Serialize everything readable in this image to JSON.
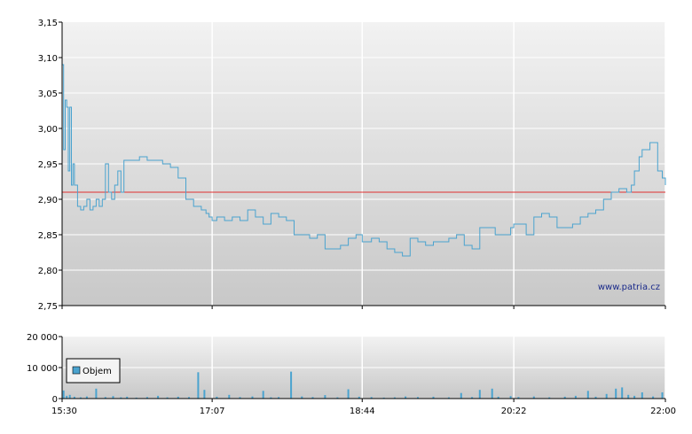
{
  "watermark": "www.patria.cz",
  "colors": {
    "price_line": "#4aa3cf",
    "reference_line": "#e03030",
    "volume_bar": "#4aa3cf",
    "grid": "#ffffff",
    "plot_bg_top": "#f2f2f2",
    "plot_bg_bottom": "#c8c8c8"
  },
  "chart_data": [
    {
      "type": "line",
      "name": "price",
      "grid": true,
      "ylim": [
        2.75,
        3.15
      ],
      "y_ticks": [
        "2,75",
        "2,80",
        "2,85",
        "2,90",
        "2,95",
        "3,00",
        "3,05",
        "3,10",
        "3,15"
      ],
      "x_range": [
        "15:30",
        "22:00"
      ],
      "reference_value": 2.91,
      "series": [
        {
          "x": [
            "15:30",
            "15:31",
            "15:32",
            "15:33",
            "15:34",
            "15:35",
            "15:36",
            "15:37",
            "15:38",
            "15:40",
            "15:42",
            "15:44",
            "15:46",
            "15:48",
            "15:50",
            "15:52",
            "15:54",
            "15:56",
            "15:58",
            "16:00",
            "16:02",
            "16:04",
            "16:06",
            "16:08",
            "16:10",
            "16:15",
            "16:20",
            "16:25",
            "16:30",
            "16:35",
            "16:40",
            "16:45",
            "16:50",
            "16:55",
            "17:00",
            "17:03",
            "17:05",
            "17:07",
            "17:10",
            "17:15",
            "17:20",
            "17:25",
            "17:30",
            "17:35",
            "17:40",
            "17:45",
            "17:50",
            "17:55",
            "18:00",
            "18:05",
            "18:10",
            "18:15",
            "18:20",
            "18:25",
            "18:30",
            "18:35",
            "18:40",
            "18:44",
            "18:50",
            "18:55",
            "19:00",
            "19:05",
            "19:10",
            "19:15",
            "19:20",
            "19:25",
            "19:30",
            "19:35",
            "19:40",
            "19:45",
            "19:50",
            "19:55",
            "20:00",
            "20:05",
            "20:10",
            "20:15",
            "20:20",
            "20:22",
            "20:25",
            "20:30",
            "20:35",
            "20:40",
            "20:45",
            "20:50",
            "20:55",
            "21:00",
            "21:05",
            "21:10",
            "21:15",
            "21:20",
            "21:25",
            "21:30",
            "21:35",
            "21:38",
            "21:40",
            "21:43",
            "21:45",
            "21:50",
            "21:55",
            "21:58",
            "22:00"
          ],
          "y": [
            3.09,
            2.97,
            3.04,
            3.03,
            2.94,
            3.03,
            2.92,
            2.95,
            2.92,
            2.89,
            2.885,
            2.89,
            2.9,
            2.885,
            2.89,
            2.9,
            2.89,
            2.9,
            2.95,
            2.91,
            2.9,
            2.92,
            2.94,
            2.91,
            2.955,
            2.955,
            2.96,
            2.955,
            2.955,
            2.95,
            2.945,
            2.93,
            2.9,
            2.89,
            2.885,
            2.88,
            2.875,
            2.87,
            2.875,
            2.87,
            2.875,
            2.87,
            2.885,
            2.875,
            2.865,
            2.88,
            2.875,
            2.87,
            2.85,
            2.85,
            2.845,
            2.85,
            2.83,
            2.83,
            2.835,
            2.845,
            2.85,
            2.84,
            2.845,
            2.84,
            2.83,
            2.825,
            2.82,
            2.845,
            2.84,
            2.835,
            2.84,
            2.84,
            2.845,
            2.85,
            2.835,
            2.83,
            2.86,
            2.86,
            2.85,
            2.85,
            2.86,
            2.865,
            2.865,
            2.85,
            2.875,
            2.88,
            2.875,
            2.86,
            2.86,
            2.865,
            2.875,
            2.88,
            2.885,
            2.9,
            2.91,
            2.915,
            2.91,
            2.92,
            2.94,
            2.96,
            2.97,
            2.98,
            2.94,
            2.93,
            2.92
          ]
        }
      ]
    },
    {
      "type": "bar",
      "name": "volume",
      "legend": "Objem",
      "legend_position": "top-left",
      "ylim": [
        0,
        20000
      ],
      "y_ticks": [
        "0",
        "10 000",
        "20 000"
      ],
      "x_ticks": [
        "15:30",
        "17:07",
        "18:44",
        "20:22",
        "22:00"
      ],
      "series": [
        {
          "x": [
            "15:31",
            "15:33",
            "15:35",
            "15:38",
            "15:42",
            "15:46",
            "15:52",
            "15:58",
            "16:03",
            "16:08",
            "16:12",
            "16:18",
            "16:25",
            "16:32",
            "16:38",
            "16:45",
            "16:52",
            "16:58",
            "17:02",
            "17:10",
            "17:18",
            "17:25",
            "17:33",
            "17:40",
            "17:45",
            "17:50",
            "17:58",
            "18:05",
            "18:12",
            "18:20",
            "18:28",
            "18:35",
            "18:42",
            "18:50",
            "18:58",
            "19:05",
            "19:12",
            "19:20",
            "19:30",
            "19:40",
            "19:48",
            "19:55",
            "20:00",
            "20:08",
            "20:12",
            "20:20",
            "20:25",
            "20:35",
            "20:45",
            "20:55",
            "21:02",
            "21:10",
            "21:15",
            "21:22",
            "21:28",
            "21:32",
            "21:36",
            "21:40",
            "21:45",
            "21:52",
            "21:58"
          ],
          "y": [
            2600,
            900,
            1200,
            600,
            400,
            700,
            3200,
            500,
            800,
            400,
            600,
            300,
            500,
            900,
            400,
            600,
            500,
            8500,
            2800,
            600,
            1200,
            500,
            700,
            2500,
            400,
            500,
            8700,
            700,
            500,
            1100,
            400,
            3000,
            600,
            500,
            300,
            400,
            700,
            500,
            600,
            400,
            1800,
            500,
            2800,
            3200,
            600,
            800,
            500,
            700,
            400,
            600,
            900,
            2500,
            600,
            1500,
            3200,
            3600,
            1200,
            900,
            2000,
            700,
            2000
          ]
        }
      ]
    }
  ]
}
